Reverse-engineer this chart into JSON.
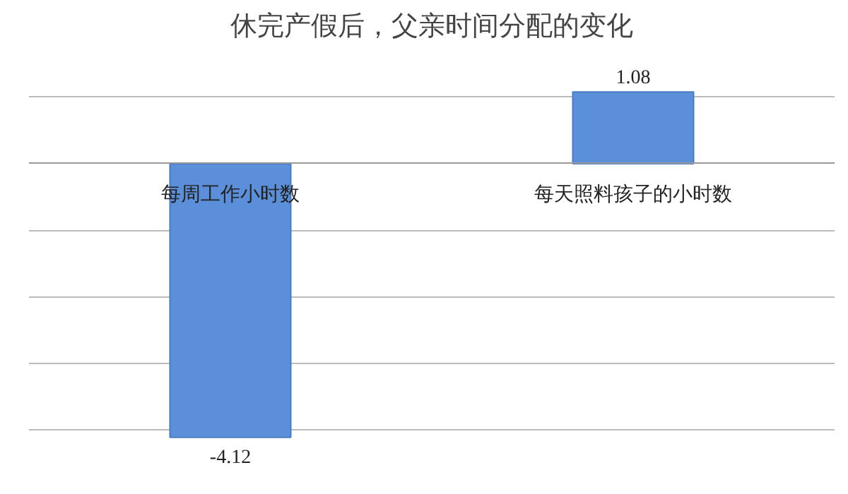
{
  "chart_data": {
    "type": "bar",
    "title": "休完产假后，父亲时间分配的变化",
    "categories": [
      "每周工作小时数",
      "每天照料孩子的小时数"
    ],
    "values": [
      -4.12,
      1.08
    ],
    "color": "#5b8fd9",
    "grid": "y",
    "tick_labels": "x",
    "data_labels": true
  }
}
